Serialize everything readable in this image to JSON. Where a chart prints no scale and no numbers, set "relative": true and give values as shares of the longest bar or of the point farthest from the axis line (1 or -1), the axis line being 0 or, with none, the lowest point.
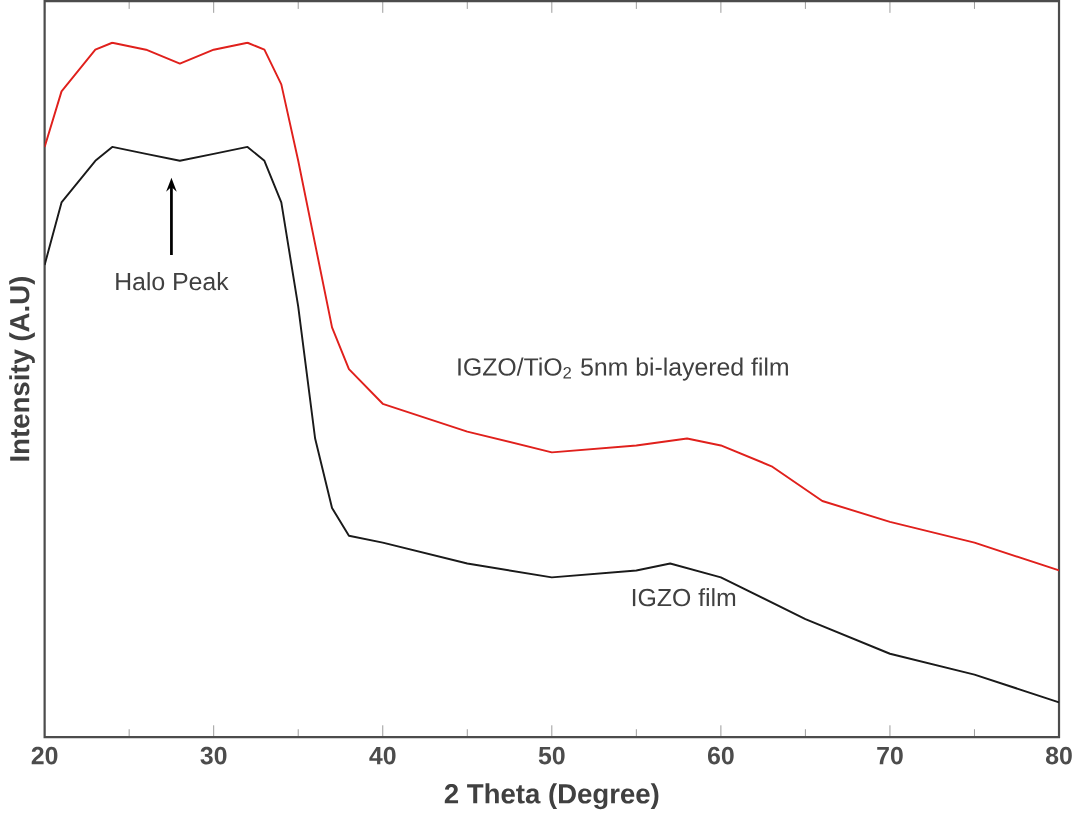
{
  "chart_data": {
    "type": "line",
    "relative": true,
    "xlabel": "2 Theta (Degree)",
    "ylabel": "Intensity (A.U)",
    "xlim": [
      20,
      80
    ],
    "xticks": [
      20,
      30,
      40,
      50,
      60,
      70,
      80
    ],
    "grid": false,
    "legend": false,
    "marker": "none",
    "line_style": "solid",
    "annotations": [
      "Halo Peak"
    ],
    "series": [
      {
        "name": "IGZO/TiO$_{2}$ 5nm bi-layered film",
        "color": "#e0201c",
        "x": [
          20,
          21,
          23,
          24,
          26,
          28,
          30,
          32,
          33,
          34,
          35,
          36,
          37,
          38,
          40,
          45,
          50,
          55,
          58,
          60,
          63,
          66,
          70,
          75,
          80
        ],
        "values": [
          0.85,
          0.93,
          0.99,
          1.0,
          0.99,
          0.97,
          0.99,
          1.0,
          0.99,
          0.94,
          0.83,
          0.71,
          0.59,
          0.53,
          0.48,
          0.44,
          0.41,
          0.42,
          0.43,
          0.42,
          0.39,
          0.34,
          0.31,
          0.28,
          0.24
        ]
      },
      {
        "name": "IGZO film",
        "color": "#1a1a1a",
        "x": [
          20,
          21,
          23,
          24,
          26,
          28,
          30,
          32,
          33,
          34,
          35,
          36,
          37,
          38,
          40,
          45,
          50,
          55,
          57,
          60,
          65,
          70,
          75,
          80
        ],
        "values": [
          0.68,
          0.77,
          0.83,
          0.85,
          0.84,
          0.83,
          0.84,
          0.85,
          0.83,
          0.77,
          0.62,
          0.43,
          0.33,
          0.29,
          0.28,
          0.25,
          0.23,
          0.24,
          0.25,
          0.23,
          0.17,
          0.12,
          0.09,
          0.05
        ]
      }
    ]
  }
}
